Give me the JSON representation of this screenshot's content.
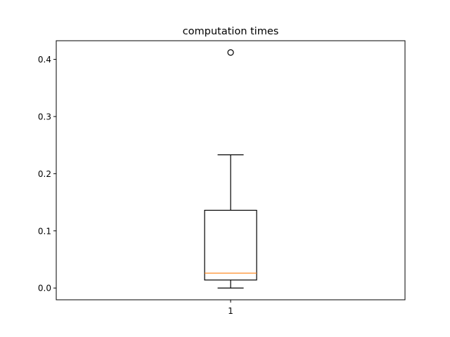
{
  "chart_data": {
    "type": "box",
    "title": "computation times",
    "xlabel": "",
    "ylabel": "",
    "categories": [
      "1"
    ],
    "ylim": [
      -0.0206,
      0.4326
    ],
    "yticks": [
      0.0,
      0.1,
      0.2,
      0.3,
      0.4
    ],
    "ytick_labels": [
      "0.0",
      "0.1",
      "0.2",
      "0.3",
      "0.4"
    ],
    "xtick_labels": [
      "1"
    ],
    "grid": false,
    "boxes": [
      {
        "category": "1",
        "whisker_low": 0.0,
        "q1": 0.014,
        "median": 0.026,
        "q3": 0.136,
        "whisker_high": 0.233,
        "outliers": [
          0.412
        ]
      }
    ],
    "colors": {
      "box": "#000000",
      "median": "#ff7f0e",
      "outlier": "#000000"
    }
  }
}
